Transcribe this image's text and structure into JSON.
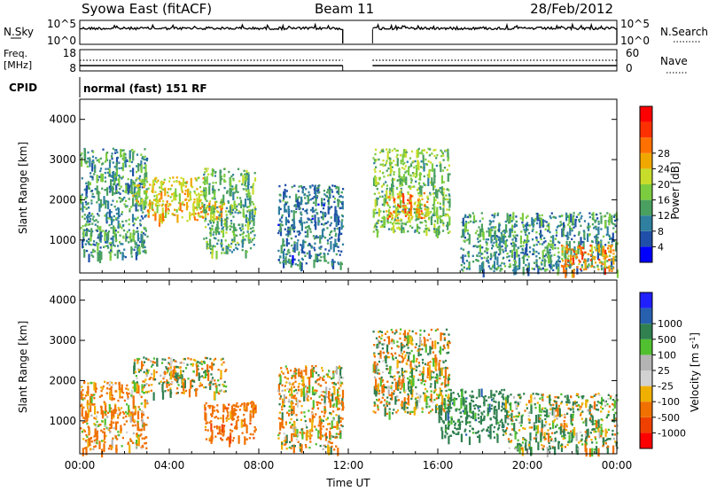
{
  "header": {
    "radar_title": "Syowa East (fitACF)",
    "beam": "Beam 11",
    "date": "28/Feb/2012"
  },
  "noise_panel": {
    "left_label": "N.Sky",
    "right_label": "N.Search",
    "left_ticks": [
      "10^5",
      "10^0"
    ],
    "right_ticks": [
      "10^5",
      "10^0"
    ]
  },
  "freq_panel": {
    "left_label_line1": "Freq.",
    "left_label_line2": "[MHz]",
    "right_label": "Nave",
    "left_ticks": [
      "18",
      "8"
    ],
    "right_ticks": [
      "60",
      "0"
    ]
  },
  "cpid": {
    "label": "CPID",
    "value": "normal (fast) 151 RF"
  },
  "colors": {
    "power_scale": [
      "#0000ff",
      "#1f4fa8",
      "#2f7fa0",
      "#4aa060",
      "#7ccc40",
      "#c8dc2c",
      "#f0a800",
      "#ff7000",
      "#ff3000",
      "#ff0000"
    ],
    "velocity_scale": [
      "#2020ff",
      "#2860b0",
      "#308050",
      "#50c030",
      "#b4b4b4",
      "#d2d2d2",
      "#f0b000",
      "#f07000",
      "#f04000",
      "#ff0000"
    ]
  },
  "chart_data": [
    {
      "type": "heatmap",
      "name": "power",
      "xlabel": "",
      "ylabel": "Slant Range [km]",
      "x_range": [
        "00:00",
        "24:00"
      ],
      "ylim": [
        180,
        4500
      ],
      "y_ticks": [
        1000,
        2000,
        3000,
        4000
      ],
      "data_gap": [
        "11:45",
        "13:05"
      ],
      "colorbar": {
        "label": "Power [dB]",
        "range": [
          0,
          32
        ],
        "tick_labels": [
          "4",
          "8",
          "12",
          "16",
          "20",
          "24",
          "28"
        ]
      },
      "echo_regions": [
        {
          "start": "00:00",
          "end": "03:00",
          "range_km": [
            600,
            3300
          ],
          "level_db": 10
        },
        {
          "start": "02:20",
          "end": "05:30",
          "range_km": [
            1900,
            2600
          ],
          "level_db": 18
        },
        {
          "start": "03:00",
          "end": "06:30",
          "range_km": [
            1500,
            2000
          ],
          "level_db": 20
        },
        {
          "start": "05:30",
          "end": "07:50",
          "range_km": [
            700,
            2800
          ],
          "level_db": 12
        },
        {
          "start": "08:50",
          "end": "11:45",
          "range_km": [
            400,
            2400
          ],
          "level_db": 8
        },
        {
          "start": "13:05",
          "end": "16:30",
          "range_km": [
            1200,
            3300
          ],
          "level_db": 14
        },
        {
          "start": "13:40",
          "end": "15:30",
          "range_km": [
            1500,
            2200
          ],
          "level_db": 22
        },
        {
          "start": "17:00",
          "end": "24:00",
          "range_km": [
            250,
            1700
          ],
          "level_db": 10
        },
        {
          "start": "21:30",
          "end": "23:50",
          "range_km": [
            250,
            900
          ],
          "level_db": 22
        }
      ]
    },
    {
      "type": "heatmap",
      "name": "velocity",
      "xlabel": "Time UT",
      "ylabel": "Slant Range [km]",
      "x_range": [
        "00:00",
        "24:00"
      ],
      "x_tick_labels": [
        "00:00",
        "04:00",
        "08:00",
        "12:00",
        "16:00",
        "20:00",
        "00:00"
      ],
      "ylim": [
        180,
        4500
      ],
      "y_ticks": [
        1000,
        2000,
        3000,
        4000
      ],
      "data_gap": [
        "11:45",
        "13:05"
      ],
      "colorbar": {
        "label": "Velocity [m s^-1]",
        "tick_labels": [
          "1000",
          "500",
          "100",
          "25",
          "-25",
          "-100",
          "-500",
          "-1000"
        ]
      },
      "echo_regions": [
        {
          "start": "00:00",
          "end": "03:00",
          "range_km": [
            300,
            2000
          ],
          "velocity_ms": -150
        },
        {
          "start": "02:20",
          "end": "06:30",
          "range_km": [
            1700,
            2600
          ],
          "velocity_ms": 0
        },
        {
          "start": "05:30",
          "end": "07:50",
          "range_km": [
            500,
            1500
          ],
          "velocity_ms": -300
        },
        {
          "start": "08:50",
          "end": "11:45",
          "range_km": [
            300,
            2400
          ],
          "velocity_ms": -80
        },
        {
          "start": "13:05",
          "end": "16:30",
          "range_km": [
            1200,
            3300
          ],
          "velocity_ms": 0
        },
        {
          "start": "16:00",
          "end": "19:00",
          "range_km": [
            600,
            1800
          ],
          "velocity_ms": 300
        },
        {
          "start": "19:00",
          "end": "24:00",
          "range_km": [
            300,
            1700
          ],
          "velocity_ms": 50
        }
      ]
    }
  ]
}
